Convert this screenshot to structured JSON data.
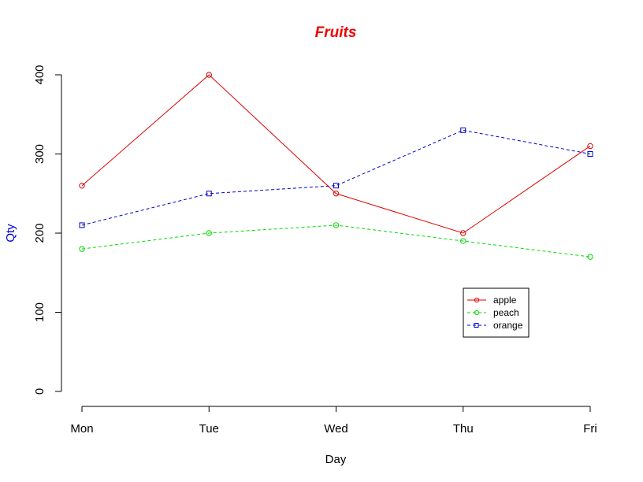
{
  "chart_data": {
    "type": "line",
    "title": "Fruits",
    "title_color": "#ee0000",
    "xlabel": "Day",
    "ylabel": "Qty",
    "ylabel_color": "#0000cc",
    "categories": [
      "Mon",
      "Tue",
      "Wed",
      "Thu",
      "Fri"
    ],
    "ylim": [
      0,
      400
    ],
    "yticks": [
      "0",
      "100",
      "200",
      "300",
      "400"
    ],
    "grid": false,
    "legend_position": "bottom-right",
    "series": [
      {
        "name": "apple",
        "values": [
          260,
          400,
          250,
          200,
          310
        ],
        "color": "#dd0000",
        "line": "solid",
        "marker": "circle"
      },
      {
        "name": "peach",
        "values": [
          180,
          200,
          210,
          190,
          170
        ],
        "color": "#00dd00",
        "line": "dashed",
        "marker": "circle"
      },
      {
        "name": "orange",
        "values": [
          210,
          250,
          260,
          330,
          300
        ],
        "color": "#0000cc",
        "line": "dashed",
        "marker": "square"
      }
    ]
  }
}
